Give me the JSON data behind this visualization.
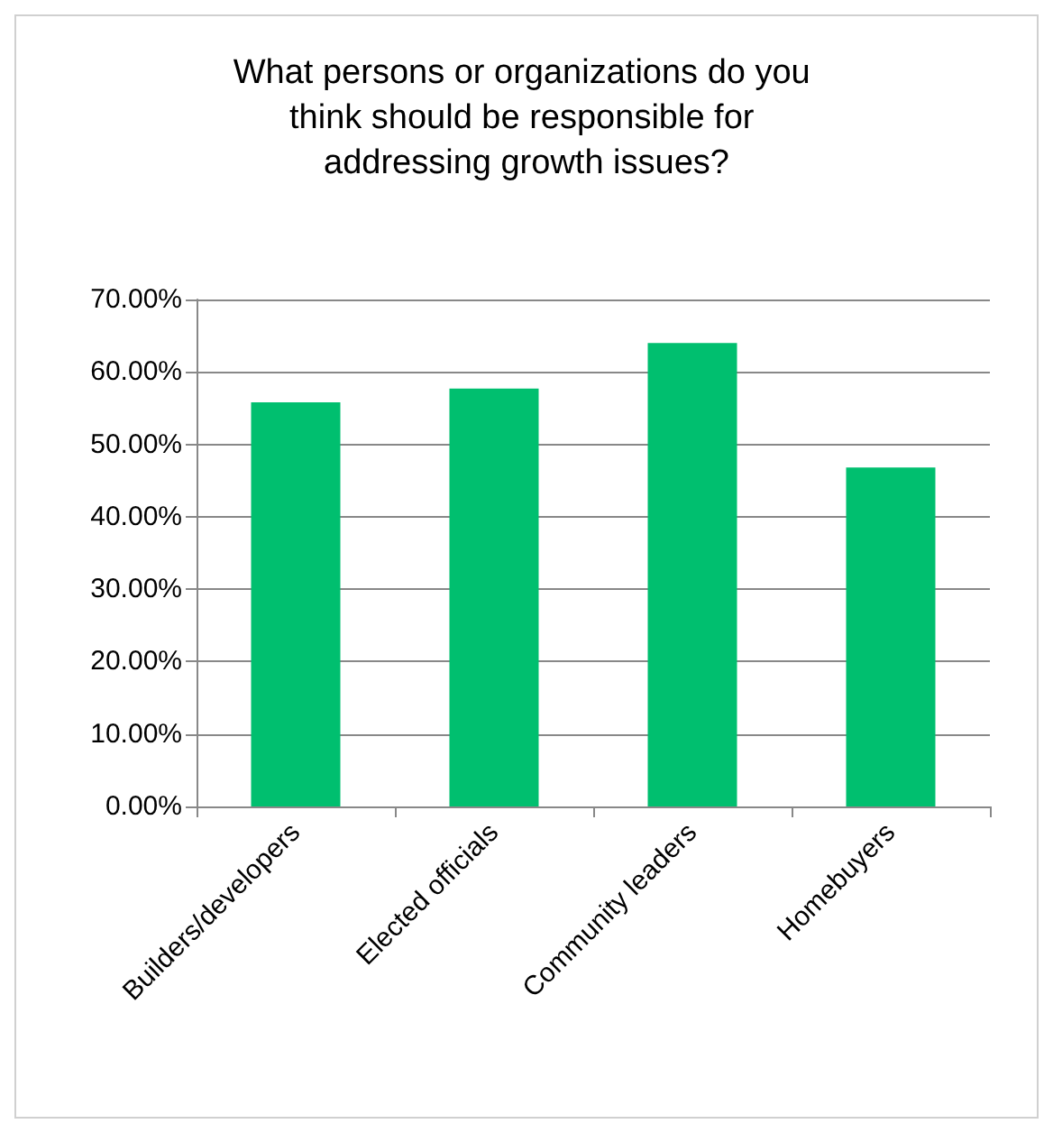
{
  "chart_data": {
    "type": "bar",
    "title": "What persons or organizations do you think should be responsible for addressing growth issues?",
    "categories": [
      "Builders/developers",
      "Elected officials",
      "Community leaders",
      "Homebuyers"
    ],
    "values": [
      55.8,
      57.7,
      64.0,
      46.8
    ],
    "color": "#00bf6f",
    "ylim": [
      0,
      70
    ],
    "yticks": [
      {
        "value": 0,
        "label": "0.00%"
      },
      {
        "value": 10,
        "label": "10.00%"
      },
      {
        "value": 20,
        "label": "20.00%"
      },
      {
        "value": 30,
        "label": "30.00%"
      },
      {
        "value": 40,
        "label": "40.00%"
      },
      {
        "value": 50,
        "label": "50.00%"
      },
      {
        "value": 60,
        "label": "60.00%"
      },
      {
        "value": 70,
        "label": "70.00%"
      }
    ],
    "grid": "y"
  }
}
